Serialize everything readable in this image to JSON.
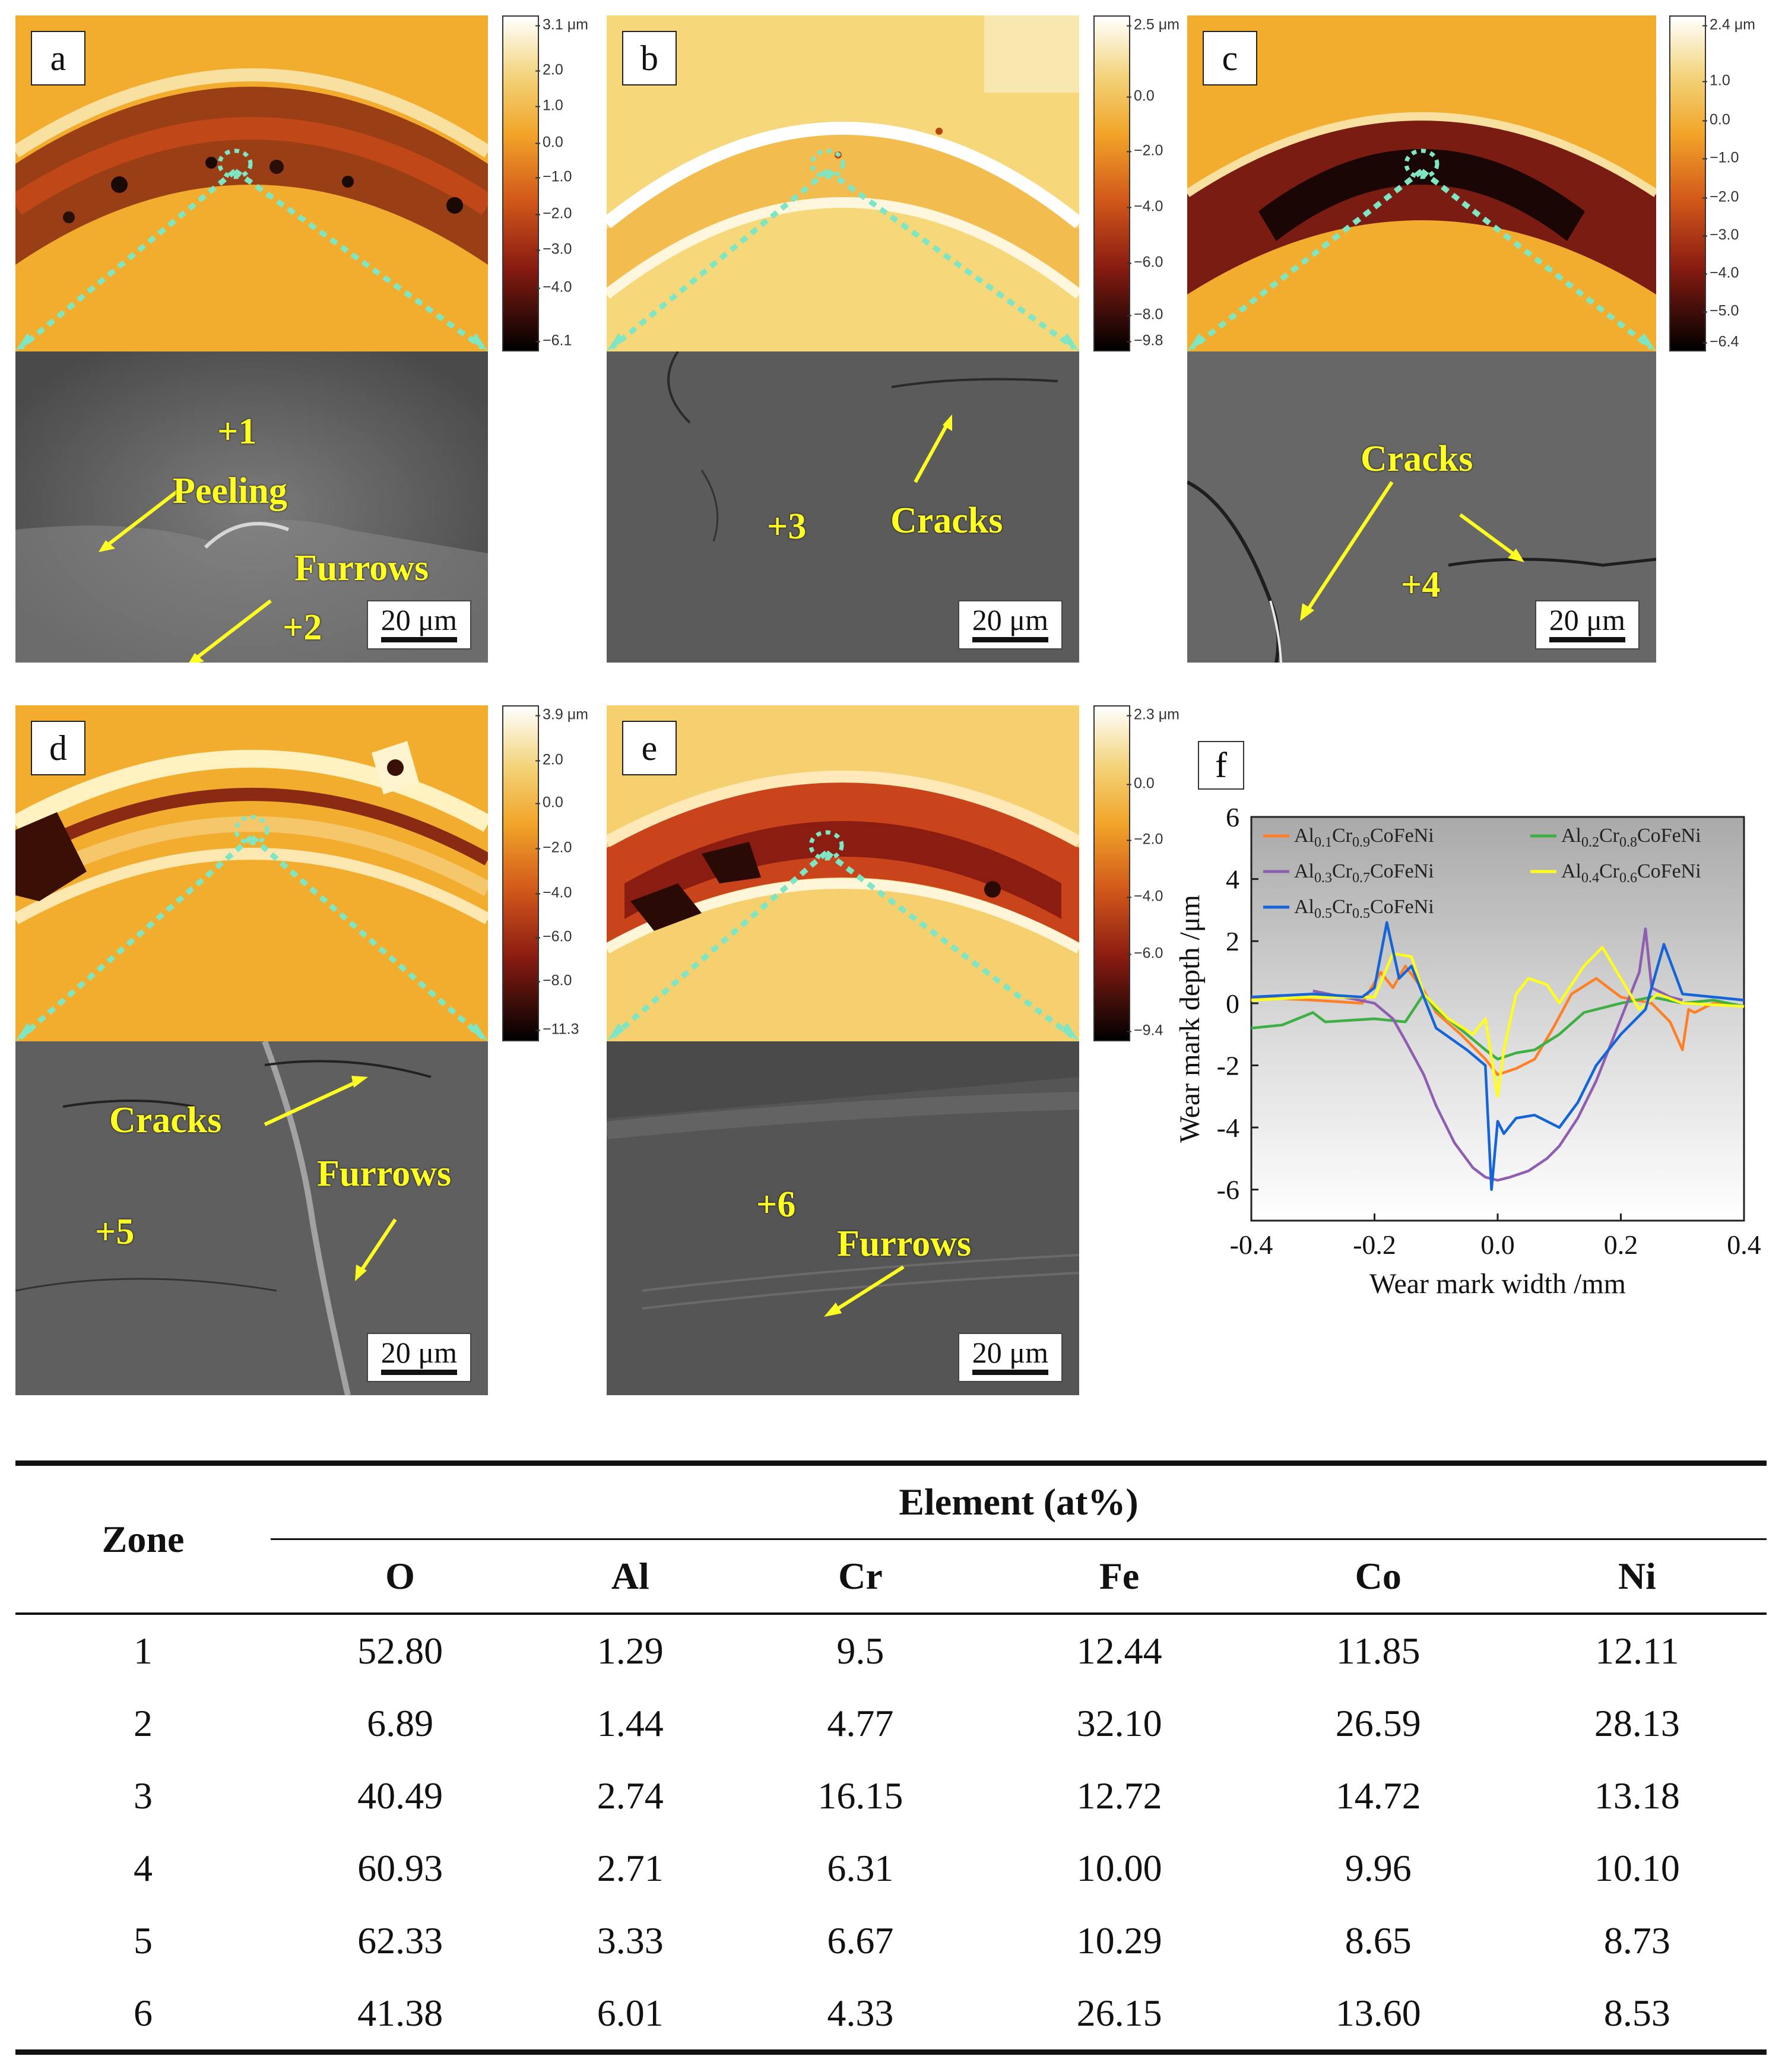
{
  "panels": [
    {
      "label": "a",
      "colorbar": {
        "ticks": [
          "3.1 μm",
          "2.0",
          "1.0",
          "0.0",
          "−1.0",
          "−2.0",
          "−3.0",
          "−4.0",
          "−6.1"
        ]
      },
      "annotations": {
        "zone1": "+1",
        "peeling": "Peeling",
        "furrows": "Furrows",
        "zone2": "+2"
      },
      "scale": "20 μm"
    },
    {
      "label": "b",
      "colorbar": {
        "ticks": [
          "2.5 μm",
          "0.0",
          "−2.0",
          "−4.0",
          "−6.0",
          "−8.0",
          "−9.8"
        ]
      },
      "annotations": {
        "zone3": "+3",
        "cracks": "Cracks"
      },
      "scale": "20 μm"
    },
    {
      "label": "c",
      "colorbar": {
        "ticks": [
          "2.4 μm",
          "1.0",
          "0.0",
          "−1.0",
          "−2.0",
          "−3.0",
          "−4.0",
          "−5.0",
          "−6.4"
        ]
      },
      "annotations": {
        "cracks": "Cracks",
        "zone4": "+4"
      },
      "scale": "20 μm"
    },
    {
      "label": "d",
      "colorbar": {
        "ticks": [
          "3.9 μm",
          "2.0",
          "0.0",
          "−2.0",
          "−4.0",
          "−6.0",
          "−8.0",
          "−11.3"
        ]
      },
      "annotations": {
        "cracks": "Cracks",
        "furrows": "Furrows",
        "zone5": "+5"
      },
      "scale": "20 μm"
    },
    {
      "label": "e",
      "colorbar": {
        "ticks": [
          "2.3 μm",
          "0.0",
          "−2.0",
          "−4.0",
          "−6.0",
          "−9.4"
        ]
      },
      "annotations": {
        "zone6": "+6",
        "furrows": "Furrows"
      },
      "scale": "20 μm"
    }
  ],
  "chart": {
    "label": "f",
    "colors": {
      "s1": "#ff7f27",
      "s2": "#3cb043",
      "s3": "#8e5fb0",
      "s4": "#ffff1a",
      "s5": "#1565d8"
    }
  },
  "chart_data": {
    "type": "line",
    "xlabel": "Wear mark width /mm",
    "ylabel": "Wear mark depth /μm",
    "xlim": [
      -0.4,
      0.4
    ],
    "ylim": [
      -7,
      6
    ],
    "xticks": [
      -0.4,
      -0.2,
      0.0,
      0.2,
      0.4
    ],
    "yticks": [
      -6,
      -4,
      -2,
      0,
      2,
      4,
      6
    ],
    "xtick_labels": [
      "-0.4",
      "-0.2",
      "0.0",
      "0.2",
      "0.4"
    ],
    "ytick_labels": [
      "-6",
      "-4",
      "-2",
      "0",
      "2",
      "4",
      "6"
    ],
    "legend": [
      "Al0.1Cr0.9CoFeNi",
      "Al0.2Cr0.8CoFeNi",
      "Al0.3Cr0.7CoFeNi",
      "Al0.4Cr0.6CoFeNi",
      "Al0.5Cr0.5CoFeNi"
    ],
    "series": [
      {
        "name": "Al0.1Cr0.9CoFeNi",
        "color": "#ff7f27",
        "x": [
          -0.4,
          -0.3,
          -0.22,
          -0.19,
          -0.17,
          -0.15,
          -0.12,
          -0.1,
          -0.06,
          -0.02,
          0.0,
          0.03,
          0.06,
          0.09,
          0.12,
          0.16,
          0.2,
          0.25,
          0.28,
          0.3,
          0.31,
          0.32,
          0.35,
          0.4
        ],
        "y": [
          0.2,
          0.1,
          0.0,
          1.0,
          0.5,
          1.2,
          0.4,
          -0.3,
          -1.0,
          -1.8,
          -2.3,
          -2.1,
          -1.8,
          -0.8,
          0.3,
          0.8,
          0.2,
          0.0,
          -0.6,
          -1.5,
          -0.2,
          -0.3,
          0.0,
          -0.1
        ]
      },
      {
        "name": "Al0.2Cr0.8CoFeNi",
        "color": "#3cb043",
        "x": [
          -0.4,
          -0.35,
          -0.3,
          -0.28,
          -0.2,
          -0.15,
          -0.12,
          -0.1,
          -0.05,
          -0.02,
          0.0,
          0.03,
          0.06,
          0.1,
          0.14,
          0.2,
          0.25,
          0.3,
          0.35,
          0.4
        ],
        "y": [
          -0.8,
          -0.7,
          -0.3,
          -0.6,
          -0.5,
          -0.6,
          0.3,
          -0.2,
          -1.0,
          -1.5,
          -1.8,
          -1.6,
          -1.5,
          -1.0,
          -0.3,
          0.0,
          0.2,
          0.0,
          0.1,
          -0.1
        ]
      },
      {
        "name": "Al0.3Cr0.7CoFeNi",
        "color": "#8e5fb0",
        "x": [
          -0.3,
          -0.25,
          -0.2,
          -0.17,
          -0.15,
          -0.12,
          -0.1,
          -0.07,
          -0.04,
          -0.02,
          0.0,
          0.02,
          0.05,
          0.08,
          0.1,
          0.13,
          0.16,
          0.19,
          0.21,
          0.23,
          0.24,
          0.25,
          0.28,
          0.3
        ],
        "y": [
          0.4,
          0.2,
          0.0,
          -0.5,
          -1.2,
          -2.3,
          -3.3,
          -4.5,
          -5.3,
          -5.6,
          -5.7,
          -5.6,
          -5.4,
          -5.0,
          -4.6,
          -3.7,
          -2.5,
          -1.0,
          0.0,
          1.0,
          2.4,
          0.5,
          0.2,
          0.1
        ]
      },
      {
        "name": "Al0.4Cr0.6CoFeNi",
        "color": "#ffff1a",
        "x": [
          -0.4,
          -0.3,
          -0.2,
          -0.17,
          -0.14,
          -0.12,
          -0.08,
          -0.04,
          -0.02,
          0.0,
          0.01,
          0.03,
          0.05,
          0.08,
          0.1,
          0.14,
          0.17,
          0.2,
          0.23,
          0.26,
          0.3,
          0.4
        ],
        "y": [
          0.1,
          0.2,
          0.2,
          1.6,
          1.5,
          0.3,
          -0.5,
          -1.0,
          -0.5,
          -3.0,
          -1.5,
          0.3,
          0.8,
          0.6,
          0.0,
          1.2,
          1.8,
          0.8,
          -0.2,
          0.3,
          0.0,
          -0.1
        ]
      },
      {
        "name": "Al0.5Cr0.5CoFeNi",
        "color": "#1565d8",
        "x": [
          -0.4,
          -0.3,
          -0.22,
          -0.2,
          -0.18,
          -0.16,
          -0.14,
          -0.1,
          -0.05,
          -0.02,
          -0.01,
          0.0,
          0.01,
          0.03,
          0.06,
          0.1,
          0.13,
          0.16,
          0.2,
          0.24,
          0.27,
          0.3,
          0.35,
          0.4
        ],
        "y": [
          0.2,
          0.3,
          0.2,
          0.5,
          2.6,
          0.8,
          1.2,
          -0.8,
          -1.5,
          -2.0,
          -6.0,
          -3.8,
          -4.2,
          -3.7,
          -3.6,
          -4.0,
          -3.2,
          -2.0,
          -1.0,
          -0.2,
          1.9,
          0.3,
          0.2,
          0.1
        ]
      }
    ]
  },
  "table": {
    "zone_header": "Zone",
    "group_header": "Element (at%)",
    "columns": [
      "O",
      "Al",
      "Cr",
      "Fe",
      "Co",
      "Ni"
    ],
    "rows": [
      {
        "zone": "1",
        "values": [
          "52.80",
          "1.29",
          "9.5",
          "12.44",
          "11.85",
          "12.11"
        ]
      },
      {
        "zone": "2",
        "values": [
          "6.89",
          "1.44",
          "4.77",
          "32.10",
          "26.59",
          "28.13"
        ]
      },
      {
        "zone": "3",
        "values": [
          "40.49",
          "2.74",
          "16.15",
          "12.72",
          "14.72",
          "13.18"
        ]
      },
      {
        "zone": "4",
        "values": [
          "60.93",
          "2.71",
          "6.31",
          "10.00",
          "9.96",
          "10.10"
        ]
      },
      {
        "zone": "5",
        "values": [
          "62.33",
          "3.33",
          "6.67",
          "10.29",
          "8.65",
          "8.73"
        ]
      },
      {
        "zone": "6",
        "values": [
          "41.38",
          "6.01",
          "4.33",
          "26.15",
          "13.60",
          "8.53"
        ]
      }
    ]
  }
}
